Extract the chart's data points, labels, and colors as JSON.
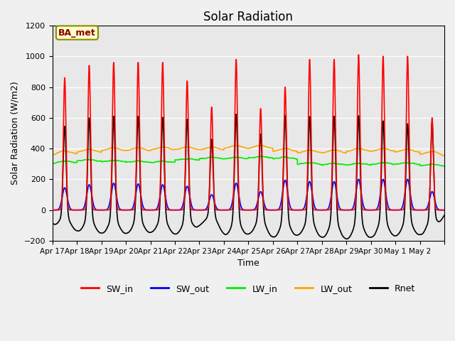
{
  "title": "Solar Radiation",
  "xlabel": "Time",
  "ylabel": "Solar Radiation (W/m2)",
  "ylim": [
    -200,
    1200
  ],
  "yticks": [
    -200,
    0,
    200,
    400,
    600,
    800,
    1000,
    1200
  ],
  "x_labels": [
    "Apr 17",
    "Apr 18",
    "Apr 19",
    "Apr 20",
    "Apr 21",
    "Apr 22",
    "Apr 23",
    "Apr 24",
    "Apr 25",
    "Apr 26",
    "Apr 27",
    "Apr 28",
    "Apr 29",
    "Apr 30",
    "May 1",
    "May 2"
  ],
  "annotation_text": "BA_met",
  "annotation_color": "#8B0000",
  "annotation_bg": "#FFFFCC",
  "plot_bg_color": "#E8E8E8",
  "series": {
    "SW_in": {
      "color": "#FF0000",
      "lw": 1.2
    },
    "SW_out": {
      "color": "#0000FF",
      "lw": 1.2
    },
    "LW_in": {
      "color": "#00EE00",
      "lw": 1.2
    },
    "LW_out": {
      "color": "#FFA500",
      "lw": 1.2
    },
    "Rnet": {
      "color": "#000000",
      "lw": 1.2
    }
  },
  "n_days": 16,
  "points_per_day": 288,
  "SW_in_peaks": [
    860,
    940,
    960,
    960,
    960,
    840,
    670,
    980,
    660,
    800,
    980,
    980,
    1010,
    1000,
    1000,
    600
  ],
  "SW_out_peaks": [
    145,
    165,
    175,
    170,
    165,
    155,
    100,
    175,
    120,
    195,
    185,
    185,
    200,
    200,
    200,
    120
  ],
  "LW_in_base": [
    300,
    310,
    305,
    300,
    300,
    315,
    325,
    325,
    330,
    325,
    290,
    285,
    285,
    290,
    290,
    280
  ],
  "LW_out_base": [
    350,
    360,
    370,
    370,
    375,
    375,
    375,
    385,
    385,
    365,
    355,
    355,
    365,
    365,
    360,
    345
  ],
  "Rnet_peaks": [
    580,
    645,
    660,
    660,
    650,
    640,
    490,
    680,
    545,
    675,
    660,
    670,
    675,
    635,
    615,
    615
  ],
  "Rnet_night": [
    -70,
    -95,
    -100,
    -100,
    -95,
    -105,
    -55,
    -115,
    -100,
    -120,
    -105,
    -120,
    -125,
    -115,
    -110,
    -105
  ]
}
